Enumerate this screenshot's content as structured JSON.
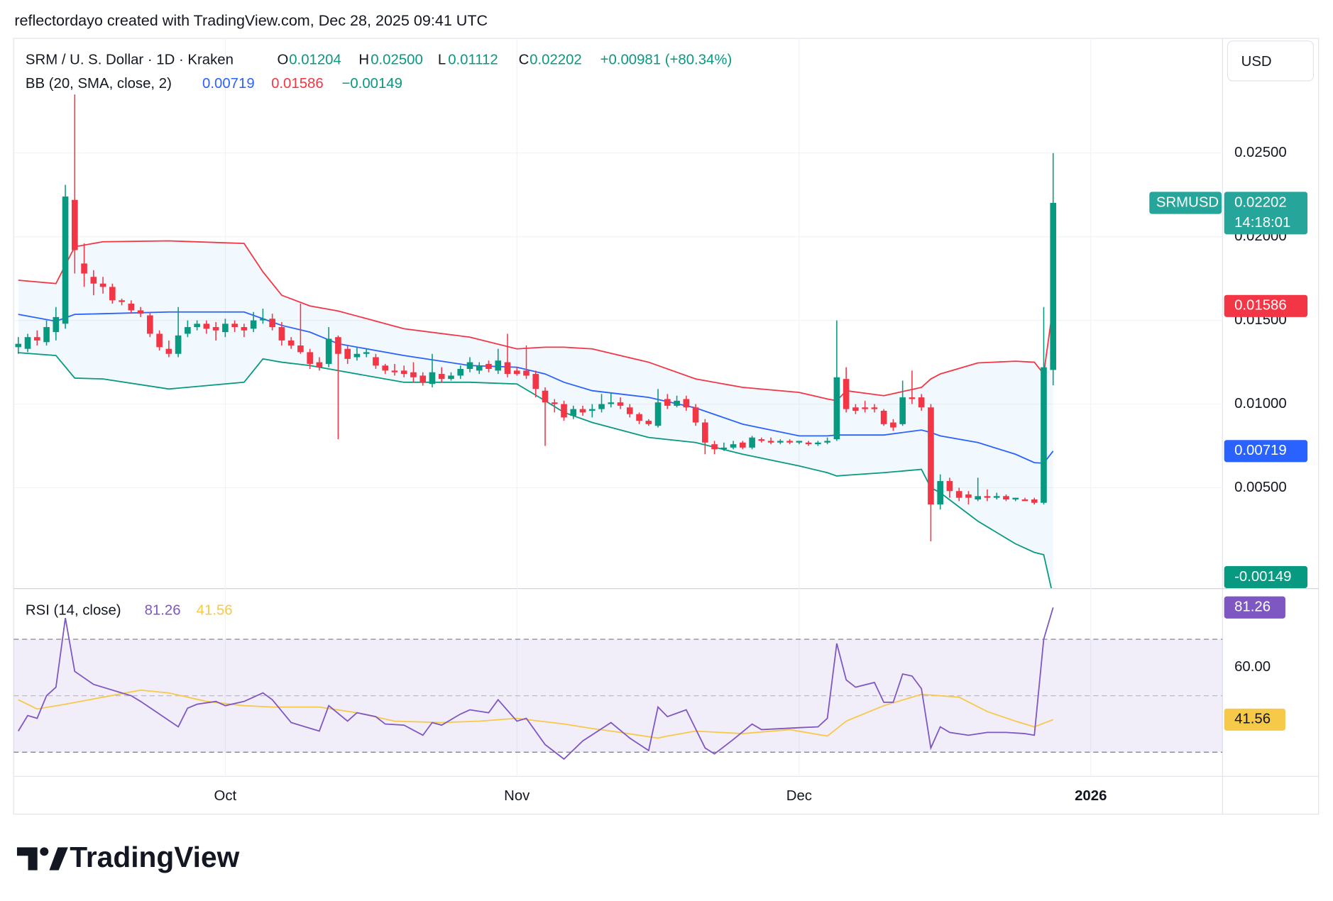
{
  "header": {
    "attribution": "reflectordayo created with TradingView.com, Dec 28, 2025 09:41 UTC",
    "currency": "USD",
    "logo": "TradingView"
  },
  "chart_data": {
    "type": "candlestick",
    "symbol": "SRM / U. S. Dollar · 1D · Kraken",
    "ohlc_keys": [
      "O",
      "H",
      "L",
      "C"
    ],
    "ohlc_values": [
      "0.01204",
      "0.02500",
      "0.01112",
      "0.02202"
    ],
    "change": "+0.00981 (+80.34%)",
    "up_color": "#089981",
    "down_color": "#f23645",
    "xlim": [
      -0.5,
      128
    ],
    "xticks": [
      {
        "value": 22,
        "label": "Oct"
      },
      {
        "value": 53,
        "label": "Nov"
      },
      {
        "value": 83,
        "label": "Dec"
      },
      {
        "value": 114,
        "label": "2026"
      }
    ],
    "ylim": [
      -0.001,
      0.03185
    ],
    "yticks": [
      {
        "value": 0.005,
        "label": "0.00500"
      },
      {
        "value": 0.01,
        "label": "0.01000"
      },
      {
        "value": 0.015,
        "label": "0.01500"
      },
      {
        "value": 0.02,
        "label": "0.02000"
      },
      {
        "value": 0.025,
        "label": "0.02500"
      }
    ],
    "grid": true,
    "ohlc": [
      [
        0.0134,
        0.014,
        0.013,
        0.0136
      ],
      [
        0.0133,
        0.0142,
        0.0131,
        0.014
      ],
      [
        0.014,
        0.0144,
        0.0135,
        0.0138
      ],
      [
        0.0137,
        0.015,
        0.0135,
        0.0146
      ],
      [
        0.0143,
        0.0158,
        0.0138,
        0.0152
      ],
      [
        0.0148,
        0.0231,
        0.0145,
        0.0224
      ],
      [
        0.0222,
        0.0285,
        0.0178,
        0.0192
      ],
      [
        0.0184,
        0.0196,
        0.017,
        0.0178
      ],
      [
        0.0176,
        0.018,
        0.0165,
        0.0172
      ],
      [
        0.0172,
        0.0176,
        0.0166,
        0.017
      ],
      [
        0.017,
        0.0172,
        0.016,
        0.0162
      ],
      [
        0.0162,
        0.0163,
        0.0159,
        0.0161
      ],
      [
        0.016,
        0.0162,
        0.0154,
        0.0156
      ],
      [
        0.0156,
        0.0158,
        0.0152,
        0.0154
      ],
      [
        0.0153,
        0.0155,
        0.014,
        0.0142
      ],
      [
        0.0142,
        0.0144,
        0.0132,
        0.0134
      ],
      [
        0.0133,
        0.0138,
        0.0128,
        0.013
      ],
      [
        0.013,
        0.0158,
        0.0128,
        0.0141
      ],
      [
        0.0142,
        0.015,
        0.014,
        0.0146
      ],
      [
        0.0146,
        0.015,
        0.0144,
        0.0148
      ],
      [
        0.0148,
        0.015,
        0.0142,
        0.0145
      ],
      [
        0.0146,
        0.0149,
        0.0138,
        0.0144
      ],
      [
        0.0143,
        0.0151,
        0.014,
        0.0148
      ],
      [
        0.0148,
        0.015,
        0.0143,
        0.0146
      ],
      [
        0.0146,
        0.0148,
        0.014,
        0.0144
      ],
      [
        0.0145,
        0.0155,
        0.0143,
        0.015
      ],
      [
        0.015,
        0.0157,
        0.0148,
        0.0151
      ],
      [
        0.0151,
        0.0154,
        0.0144,
        0.0146
      ],
      [
        0.0146,
        0.0149,
        0.0135,
        0.0138
      ],
      [
        0.0138,
        0.014,
        0.0133,
        0.0135
      ],
      [
        0.0135,
        0.016,
        0.013,
        0.0131
      ],
      [
        0.0131,
        0.0133,
        0.0121,
        0.0124
      ],
      [
        0.0125,
        0.0128,
        0.012,
        0.0122
      ],
      [
        0.0124,
        0.0146,
        0.0122,
        0.0139
      ],
      [
        0.014,
        0.0141,
        0.0079,
        0.013
      ],
      [
        0.0133,
        0.0135,
        0.0124,
        0.0127
      ],
      [
        0.0128,
        0.0134,
        0.0126,
        0.013
      ],
      [
        0.013,
        0.0133,
        0.0128,
        0.0131
      ],
      [
        0.0128,
        0.013,
        0.0121,
        0.0123
      ],
      [
        0.0123,
        0.0124,
        0.0118,
        0.012
      ],
      [
        0.012,
        0.0124,
        0.0117,
        0.0119
      ],
      [
        0.012,
        0.0123,
        0.0116,
        0.0118
      ],
      [
        0.0119,
        0.0125,
        0.0113,
        0.0116
      ],
      [
        0.0117,
        0.0119,
        0.0111,
        0.0113
      ],
      [
        0.0112,
        0.013,
        0.011,
        0.0119
      ],
      [
        0.0118,
        0.0122,
        0.0113,
        0.0115
      ],
      [
        0.0115,
        0.0119,
        0.0114,
        0.0117
      ],
      [
        0.0117,
        0.0123,
        0.0115,
        0.0121
      ],
      [
        0.0121,
        0.0128,
        0.0119,
        0.0125
      ],
      [
        0.012,
        0.0125,
        0.0118,
        0.0123
      ],
      [
        0.0124,
        0.0126,
        0.0119,
        0.0121
      ],
      [
        0.012,
        0.0133,
        0.0118,
        0.0126
      ],
      [
        0.0125,
        0.0142,
        0.0116,
        0.0118
      ],
      [
        0.012,
        0.0122,
        0.0117,
        0.0118
      ],
      [
        0.012,
        0.0135,
        0.0115,
        0.0117
      ],
      [
        0.0118,
        0.012,
        0.0104,
        0.0109
      ],
      [
        0.0108,
        0.011,
        0.0075,
        0.0101
      ],
      [
        0.0101,
        0.0103,
        0.0095,
        0.01
      ],
      [
        0.01,
        0.0102,
        0.009,
        0.0092
      ],
      [
        0.0093,
        0.0099,
        0.0091,
        0.0097
      ],
      [
        0.0097,
        0.0099,
        0.0093,
        0.0095
      ],
      [
        0.0096,
        0.01,
        0.0092,
        0.0097
      ],
      [
        0.0097,
        0.0106,
        0.0095,
        0.01
      ],
      [
        0.01,
        0.0107,
        0.0098,
        0.0101
      ],
      [
        0.0101,
        0.0104,
        0.0097,
        0.0099
      ],
      [
        0.0098,
        0.01,
        0.0092,
        0.0094
      ],
      [
        0.0094,
        0.0095,
        0.0088,
        0.009
      ],
      [
        0.009,
        0.0091,
        0.0087,
        0.0088
      ],
      [
        0.0087,
        0.0109,
        0.0086,
        0.0101
      ],
      [
        0.0103,
        0.0106,
        0.0097,
        0.0099
      ],
      [
        0.0099,
        0.0105,
        0.0098,
        0.0102
      ],
      [
        0.0103,
        0.0105,
        0.0096,
        0.0098
      ],
      [
        0.0098,
        0.01,
        0.0087,
        0.0089
      ],
      [
        0.0089,
        0.0091,
        0.007,
        0.0077
      ],
      [
        0.0076,
        0.0078,
        0.007,
        0.0073
      ],
      [
        0.0073,
        0.0077,
        0.0072,
        0.0074
      ],
      [
        0.0074,
        0.0078,
        0.0073,
        0.0076
      ],
      [
        0.0077,
        0.0078,
        0.0073,
        0.0074
      ],
      [
        0.0074,
        0.0081,
        0.0073,
        0.008
      ],
      [
        0.0079,
        0.008,
        0.0077,
        0.0078
      ],
      [
        0.0078,
        0.008,
        0.0076,
        0.0077
      ],
      [
        0.0077,
        0.0079,
        0.0076,
        0.0078
      ],
      [
        0.0078,
        0.0079,
        0.0076,
        0.0077
      ],
      [
        0.0077,
        0.0078,
        0.0076,
        0.0078
      ],
      [
        0.0077,
        0.0078,
        0.0075,
        0.0076
      ],
      [
        0.0076,
        0.0078,
        0.0075,
        0.0077
      ],
      [
        0.0077,
        0.008,
        0.0076,
        0.0078
      ],
      [
        0.0079,
        0.015,
        0.0078,
        0.0116
      ],
      [
        0.0115,
        0.0122,
        0.0095,
        0.0097
      ],
      [
        0.0098,
        0.01,
        0.0094,
        0.0096
      ],
      [
        0.0098,
        0.0102,
        0.0095,
        0.0097
      ],
      [
        0.0098,
        0.01,
        0.0095,
        0.0097
      ],
      [
        0.0096,
        0.0097,
        0.0087,
        0.0088
      ],
      [
        0.0089,
        0.0091,
        0.0084,
        0.0086
      ],
      [
        0.0088,
        0.0114,
        0.0087,
        0.0104
      ],
      [
        0.0104,
        0.012,
        0.01,
        0.0103
      ],
      [
        0.0104,
        0.0106,
        0.0096,
        0.0098
      ],
      [
        0.0098,
        0.01,
        0.0018,
        0.004
      ],
      [
        0.004,
        0.0058,
        0.0037,
        0.0054
      ],
      [
        0.0054,
        0.0056,
        0.0044,
        0.0048
      ],
      [
        0.0048,
        0.005,
        0.0042,
        0.0044
      ],
      [
        0.0046,
        0.0048,
        0.004,
        0.0044
      ],
      [
        0.0043,
        0.0056,
        0.0042,
        0.0045
      ],
      [
        0.0045,
        0.0049,
        0.0042,
        0.0044
      ],
      [
        0.0044,
        0.0047,
        0.0043,
        0.0045
      ],
      [
        0.0045,
        0.0046,
        0.0042,
        0.0043
      ],
      [
        0.0043,
        0.0044,
        0.0042,
        0.0044
      ],
      [
        0.0043,
        0.0044,
        0.0042,
        0.0042
      ],
      [
        0.0043,
        0.0044,
        0.004,
        0.0041
      ],
      [
        0.0041,
        0.0158,
        0.004,
        0.0122
      ],
      [
        0.01204,
        0.025,
        0.01112,
        0.02202
      ]
    ],
    "bollinger": {
      "label": "BB (20, SMA, close, 2)",
      "legend_values": [
        "0.00719",
        "0.01586",
        "−0.00149"
      ],
      "basis_color": "#2962ff",
      "upper_color": "#f23645",
      "lower_color": "#089981",
      "fill": "rgba(33,150,243,0.06)",
      "x": [
        0,
        4,
        6,
        9,
        16,
        24,
        26,
        28,
        31,
        34,
        41,
        48,
        53,
        56,
        58,
        61,
        67,
        72,
        77,
        83,
        86,
        87,
        88,
        92,
        96,
        97,
        98,
        102,
        106,
        108,
        109,
        110
      ],
      "upper": [
        0.0174,
        0.0172,
        0.0194,
        0.0197,
        0.01975,
        0.0196,
        0.0179,
        0.0165,
        0.01586,
        0.01556,
        0.0145,
        0.014,
        0.0133,
        0.0134,
        0.0134,
        0.0133,
        0.0125,
        0.0115,
        0.011,
        0.0107,
        0.0103,
        0.0102,
        0.0108,
        0.0105,
        0.011,
        0.0115,
        0.0118,
        0.01246,
        0.01256,
        0.0125,
        0.0118,
        0.01586
      ],
      "basis": [
        0.01536,
        0.01495,
        0.01536,
        0.0154,
        0.0155,
        0.0155,
        0.0151,
        0.0147,
        0.0143,
        0.0136,
        0.0129,
        0.0123,
        0.0122,
        0.0118,
        0.0113,
        0.0108,
        0.0104,
        0.00977,
        0.0088,
        0.0081,
        0.0081,
        0.00815,
        0.00815,
        0.00815,
        0.00845,
        0.0083,
        0.0081,
        0.0077,
        0.007,
        0.0065,
        0.00647,
        0.00719
      ],
      "lower": [
        0.01307,
        0.0129,
        0.01155,
        0.0115,
        0.0109,
        0.0113,
        0.0127,
        0.0125,
        0.0123,
        0.012,
        0.0113,
        0.0113,
        0.0112,
        0.0102,
        0.0095,
        0.0089,
        0.008,
        0.0077,
        0.007,
        0.0063,
        0.0059,
        0.0057,
        0.00575,
        0.0059,
        0.0061,
        0.005,
        0.0047,
        0.003,
        0.00165,
        0.00114,
        0.001,
        -0.00149
      ]
    },
    "price_labels": [
      {
        "value": 0.02202,
        "label": "0.02202",
        "sub": "14:18:01",
        "tag": "SRMUSD",
        "color": "#26a69a"
      },
      {
        "value": 0.01586,
        "label": "0.01586",
        "color": "#f23645"
      },
      {
        "value": 0.00719,
        "label": "0.00719",
        "color": "#2962ff"
      },
      {
        "value": -0.00149,
        "label": "-0.00149",
        "color": "#089981"
      }
    ],
    "rsi": {
      "label": "RSI (14, close)",
      "legend_values": [
        "81.26",
        "41.56"
      ],
      "color": "#7e57c2",
      "ma_color": "#f7c948",
      "ylim": [
        21.6,
        87.8
      ],
      "yticks": [
        {
          "value": 60,
          "label": "60.00"
        }
      ],
      "levels": [
        70,
        50,
        30
      ],
      "x": [
        0,
        1,
        2,
        3,
        4,
        5,
        6,
        8,
        9,
        11,
        12,
        13,
        15,
        17,
        18,
        19,
        21,
        22,
        24,
        26,
        27,
        29,
        32,
        33,
        35,
        36,
        38,
        39,
        41,
        43,
        44,
        45,
        47,
        48,
        50,
        51,
        53,
        54,
        56,
        58,
        60,
        63,
        65,
        67,
        68,
        69,
        71,
        73,
        74,
        76,
        78,
        79,
        83,
        85,
        86,
        87,
        88,
        89,
        91,
        92,
        93,
        94,
        95,
        96,
        97,
        98,
        99,
        101,
        103,
        105,
        107,
        108,
        109,
        110
      ],
      "values": [
        37.5,
        43,
        42,
        50,
        53,
        77.5,
        58.6,
        54,
        53,
        51,
        50,
        48,
        43.5,
        39,
        45.6,
        47,
        48,
        46.5,
        48,
        51,
        48.6,
        40.5,
        37.5,
        46.5,
        41,
        44,
        42.6,
        40,
        39.6,
        36,
        40.5,
        39.6,
        43.5,
        45,
        44,
        48.6,
        41,
        42,
        32.7,
        27.6,
        34,
        40.5,
        35,
        30.6,
        46,
        42.6,
        45,
        31.5,
        29.4,
        34.5,
        40,
        38,
        38.7,
        39,
        42,
        68.5,
        55.6,
        53,
        54.7,
        47.7,
        47.7,
        57.7,
        57,
        52.5,
        31.5,
        39,
        37,
        36,
        37,
        37,
        36.6,
        36,
        70,
        81.26
      ],
      "ma_x": [
        0,
        2,
        5,
        9,
        13,
        16,
        20,
        24,
        27,
        32,
        36,
        40,
        45,
        49,
        53,
        58,
        61,
        64,
        68,
        69,
        72,
        77,
        82,
        86,
        88,
        92,
        96,
        100,
        103,
        106,
        108,
        110
      ],
      "ma": [
        48.6,
        45.3,
        47,
        49.5,
        52,
        51,
        48,
        46.5,
        46,
        46,
        44,
        41,
        40.5,
        41,
        42,
        40,
        38.4,
        37,
        35,
        35.7,
        37.5,
        36.6,
        38,
        35.7,
        41,
        46.5,
        50.5,
        49.5,
        44.4,
        41,
        39,
        41.56
      ],
      "badges": [
        {
          "value": 81.26,
          "label": "81.26",
          "color": "#7e57c2",
          "text_color": "#ffffff"
        },
        {
          "value": 41.56,
          "label": "41.56",
          "color": "#f7c948",
          "text_color": "#131722"
        }
      ]
    }
  }
}
